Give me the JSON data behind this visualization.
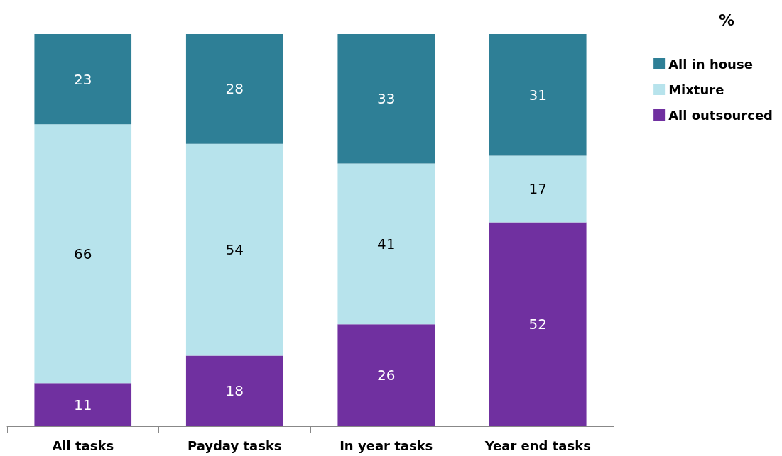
{
  "chart_data": {
    "type": "bar",
    "stacked": true,
    "categories": [
      "All tasks",
      "Payday tasks",
      "In year tasks",
      "Year end tasks"
    ],
    "series": [
      {
        "name": "All outsourced",
        "color": "#7030a0",
        "values": [
          11,
          18,
          26,
          52
        ]
      },
      {
        "name": "Mixture",
        "color": "#b7e3ec",
        "values": [
          66,
          54,
          41,
          17
        ]
      },
      {
        "name": "All in house",
        "color": "#2e7f96",
        "values": [
          23,
          28,
          33,
          31
        ]
      }
    ],
    "data_labels": true,
    "legend": "top right",
    "legend_title": "%"
  }
}
